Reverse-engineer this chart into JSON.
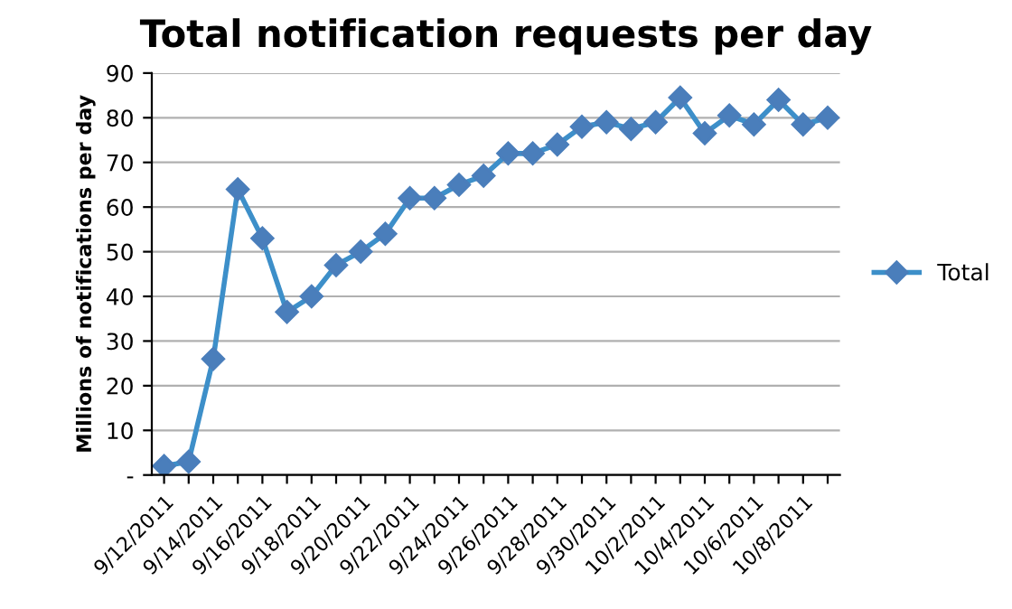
{
  "chart_data": {
    "type": "line",
    "title": "Total notification requests per day",
    "ylabel": "Millions of notifications per day",
    "categories": [
      "9/12/2011",
      null,
      "9/14/2011",
      null,
      "9/16/2011",
      null,
      "9/18/2011",
      null,
      "9/20/2011",
      null,
      "9/22/2011",
      null,
      "9/24/2011",
      null,
      "9/26/2011",
      null,
      "9/28/2011",
      null,
      "9/30/2011",
      null,
      "10/2/2011",
      null,
      "10/4/2011",
      null,
      "10/6/2011",
      null,
      "10/8/2011",
      null
    ],
    "series": [
      {
        "name": "Total",
        "color": "#3d8fc9",
        "values": [
          2,
          3,
          26,
          64,
          53,
          36.5,
          40,
          47,
          50,
          54,
          62,
          62,
          65,
          67,
          72,
          72,
          74,
          78,
          79,
          77.5,
          79,
          84.5,
          76.5,
          80.5,
          78.5,
          84,
          78.5,
          80
        ]
      }
    ],
    "ylim": [
      0,
      90
    ],
    "yticks": [
      {
        "value": 0,
        "label": "-"
      },
      10,
      20,
      30,
      40,
      50,
      60,
      70,
      80,
      90
    ],
    "grid": "y",
    "legend": "right",
    "marker": "diamond",
    "line_style": "solid"
  }
}
